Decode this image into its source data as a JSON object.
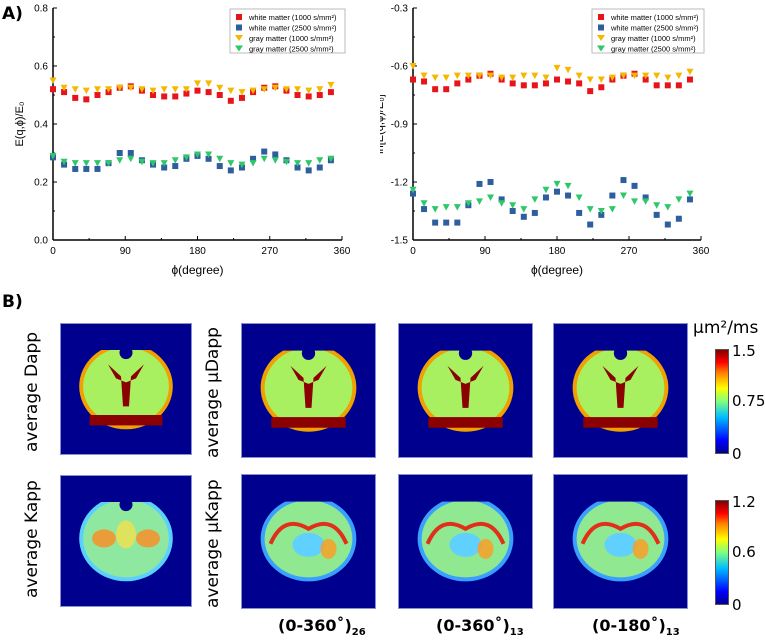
{
  "panel_a_label": "A)",
  "panel_b_label": "B)",
  "chart_data": [
    {
      "type": "scatter",
      "xlabel": "ϕ(degree)",
      "ylabel": "E(q,ϕ)/E₀",
      "xlim": [
        0,
        360
      ],
      "ylim": [
        0.0,
        0.8
      ],
      "xticks": [
        "0",
        "90",
        "180",
        "270",
        "360"
      ],
      "yticks": [
        "0.0",
        "0.2",
        "0.4",
        "0.6",
        "0.8"
      ],
      "legend_position": "top-right",
      "x": [
        0,
        13.8,
        27.7,
        41.5,
        55.4,
        69.2,
        83.1,
        96.9,
        110.8,
        124.6,
        138.5,
        152.3,
        166.2,
        180,
        193.8,
        207.7,
        221.5,
        235.4,
        249.2,
        263.1,
        276.9,
        290.8,
        304.6,
        318.5,
        332.3,
        346.2
      ],
      "series": [
        {
          "name": "white matter (1000 s/mm²)",
          "color": "#e8141c",
          "marker": "square",
          "values": [
            0.52,
            0.51,
            0.49,
            0.485,
            0.5,
            0.51,
            0.525,
            0.53,
            0.515,
            0.5,
            0.495,
            0.495,
            0.505,
            0.515,
            0.51,
            0.5,
            0.48,
            0.49,
            0.51,
            0.525,
            0.53,
            0.515,
            0.5,
            0.495,
            0.5,
            0.51
          ]
        },
        {
          "name": "white matter (2500 s/mm²)",
          "color": "#2e5e9e",
          "marker": "square",
          "values": [
            0.285,
            0.26,
            0.245,
            0.245,
            0.245,
            0.265,
            0.3,
            0.3,
            0.275,
            0.26,
            0.25,
            0.255,
            0.28,
            0.29,
            0.28,
            0.255,
            0.24,
            0.25,
            0.28,
            0.305,
            0.295,
            0.275,
            0.25,
            0.24,
            0.25,
            0.275
          ]
        },
        {
          "name": "gray  matter (1000 s/mm²)",
          "color": "#f5b800",
          "marker": "triangle-down",
          "values": [
            0.55,
            0.525,
            0.52,
            0.515,
            0.52,
            0.52,
            0.525,
            0.525,
            0.52,
            0.515,
            0.52,
            0.52,
            0.52,
            0.54,
            0.54,
            0.525,
            0.515,
            0.51,
            0.515,
            0.52,
            0.525,
            0.52,
            0.52,
            0.515,
            0.52,
            0.535
          ]
        },
        {
          "name": "gray  matter (2500 s/mm²)",
          "color": "#2ec86a",
          "marker": "triangle-down",
          "values": [
            0.29,
            0.27,
            0.265,
            0.265,
            0.265,
            0.265,
            0.275,
            0.28,
            0.27,
            0.265,
            0.265,
            0.275,
            0.285,
            0.295,
            0.295,
            0.28,
            0.265,
            0.26,
            0.265,
            0.28,
            0.275,
            0.27,
            0.265,
            0.265,
            0.275,
            0.28
          ]
        }
      ]
    },
    {
      "type": "scatter",
      "xlabel": "ϕ(degree)",
      "ylabel": "ln[E(q,ϕ)/E₀]",
      "xlim": [
        0,
        360
      ],
      "ylim": [
        -1.5,
        -0.3
      ],
      "xticks": [
        "0",
        "90",
        "180",
        "270",
        "360"
      ],
      "yticks": [
        "-1.5",
        "-1.2",
        "-0.9",
        "-0.6",
        "-0.3"
      ],
      "legend_position": "top-right",
      "x": [
        0,
        13.8,
        27.7,
        41.5,
        55.4,
        69.2,
        83.1,
        96.9,
        110.8,
        124.6,
        138.5,
        152.3,
        166.2,
        180,
        193.8,
        207.7,
        221.5,
        235.4,
        249.2,
        263.1,
        276.9,
        290.8,
        304.6,
        318.5,
        332.3,
        346.2
      ],
      "series": [
        {
          "name": "white matter (1000 s/mm²)",
          "color": "#e8141c",
          "marker": "square",
          "values": [
            -0.67,
            -0.68,
            -0.72,
            -0.72,
            -0.69,
            -0.67,
            -0.65,
            -0.64,
            -0.67,
            -0.69,
            -0.7,
            -0.7,
            -0.69,
            -0.67,
            -0.68,
            -0.69,
            -0.73,
            -0.71,
            -0.67,
            -0.65,
            -0.64,
            -0.67,
            -0.7,
            -0.7,
            -0.7,
            -0.67
          ]
        },
        {
          "name": "white matter (2500 s/mm²)",
          "color": "#2e5e9e",
          "marker": "square",
          "values": [
            -1.26,
            -1.34,
            -1.41,
            -1.41,
            -1.41,
            -1.32,
            -1.21,
            -1.2,
            -1.29,
            -1.35,
            -1.38,
            -1.36,
            -1.28,
            -1.25,
            -1.27,
            -1.36,
            -1.42,
            -1.37,
            -1.27,
            -1.19,
            -1.22,
            -1.28,
            -1.37,
            -1.42,
            -1.39,
            -1.29
          ]
        },
        {
          "name": "gray  matter (1000 s/mm²)",
          "color": "#f5b800",
          "marker": "triangle-down",
          "values": [
            -0.6,
            -0.65,
            -0.66,
            -0.66,
            -0.65,
            -0.65,
            -0.65,
            -0.65,
            -0.66,
            -0.66,
            -0.65,
            -0.65,
            -0.66,
            -0.61,
            -0.62,
            -0.65,
            -0.67,
            -0.67,
            -0.66,
            -0.65,
            -0.65,
            -0.65,
            -0.65,
            -0.66,
            -0.65,
            -0.63
          ]
        },
        {
          "name": "gray  matter (2500 s/mm²)",
          "color": "#2ec86a",
          "marker": "triangle-down",
          "values": [
            -1.24,
            -1.31,
            -1.34,
            -1.33,
            -1.33,
            -1.31,
            -1.3,
            -1.28,
            -1.31,
            -1.32,
            -1.34,
            -1.29,
            -1.24,
            -1.21,
            -1.22,
            -1.28,
            -1.34,
            -1.35,
            -1.34,
            -1.27,
            -1.3,
            -1.3,
            -1.32,
            -1.33,
            -1.29,
            -1.26
          ]
        }
      ]
    }
  ],
  "maps": {
    "rows": [
      {
        "label_left": "average Dapp",
        "label_right": "average μDapp"
      },
      {
        "label_left": "average Kapp",
        "label_right": "average μKapp"
      }
    ],
    "columns": [
      {
        "text": "(0-360˚)",
        "sub": "26"
      },
      {
        "text": "(0-360˚)",
        "sub": "13"
      },
      {
        "text": "(0-180˚)",
        "sub": "13"
      }
    ],
    "colorbars": [
      {
        "unit": "μm²/ms",
        "max": "1.5",
        "mid": "0.75",
        "min": "0"
      },
      {
        "max": "1.2",
        "mid": "0.6",
        "min": "0"
      }
    ]
  }
}
